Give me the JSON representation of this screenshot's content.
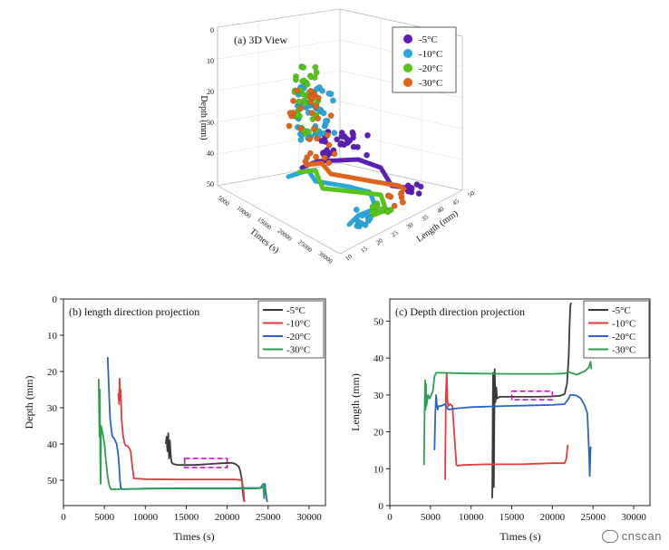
{
  "chart_data": [
    {
      "type": "scatter3d",
      "title": "(a) 3D View",
      "zlabel": "Depth (mm)",
      "xlabel": "Times (s)",
      "ylabel": "Length (mm)",
      "depth_ticks": [
        "0",
        "10",
        "20",
        "30",
        "40",
        "50"
      ],
      "time_ticks": [
        "5000",
        "10000",
        "15000",
        "20000",
        "25000",
        "30000"
      ],
      "length_ticks": [
        "10",
        "15",
        "20",
        "25",
        "30",
        "35",
        "40",
        "45",
        "50"
      ],
      "legend": [
        {
          "name": "-5°C",
          "color": "#5b1fb8"
        },
        {
          "name": "-10°C",
          "color": "#2aa6d8"
        },
        {
          "name": "-20°C",
          "color": "#57c41c"
        },
        {
          "name": "-30°C",
          "color": "#e0641c"
        }
      ],
      "legend_position": "top-right"
    },
    {
      "type": "line",
      "title": "(b) length direction projection",
      "xlabel": "Times (s)",
      "ylabel": "Depth (mm)",
      "xlim": [
        0,
        32000
      ],
      "ylim": [
        0,
        57
      ],
      "y_inverted": true,
      "xticks": [
        0,
        5000,
        10000,
        15000,
        20000,
        25000,
        30000
      ],
      "yticks": [
        0,
        10,
        20,
        30,
        40,
        50
      ],
      "legend_position": "top-right",
      "series": [
        {
          "name": "-5°C",
          "color": "#3a3a3a",
          "x": [
            12500,
            12600,
            12700,
            12800,
            12900,
            13000,
            13100,
            13200,
            13400,
            14000,
            16000,
            18000,
            19500,
            20500,
            21000,
            21400,
            21600,
            21800,
            21900,
            22000,
            22100
          ],
          "y": [
            40,
            38,
            42,
            37,
            44,
            39,
            43,
            45,
            45.5,
            45.8,
            45.8,
            45.5,
            45.3,
            45.2,
            45.5,
            46.2,
            47.5,
            50,
            53,
            55,
            56
          ]
        },
        {
          "name": "-10°C",
          "color": "#e03c3c",
          "x": [
            6700,
            6800,
            6850,
            6900,
            7000,
            7100,
            7300,
            7500,
            7600,
            7800,
            8000,
            8200,
            8400,
            8600,
            10000,
            14000,
            18000,
            21000,
            21800,
            22000,
            22100
          ],
          "y": [
            26,
            29,
            22,
            28,
            25,
            33,
            38,
            40,
            40.5,
            40.5,
            41,
            42,
            46,
            49.5,
            49.7,
            49.8,
            49.8,
            49.8,
            50,
            53,
            56
          ]
        },
        {
          "name": "-20°C",
          "color": "#2b63c8",
          "x": [
            5400,
            5500,
            5600,
            5700,
            5800,
            5900,
            6000,
            6200,
            6500,
            6700,
            6800,
            6900,
            7000,
            7200,
            10000,
            15000,
            20000,
            24000,
            24500,
            24600,
            24700,
            24800,
            24900
          ],
          "y": [
            16,
            22,
            28,
            33,
            35,
            37,
            38,
            38.5,
            40,
            43,
            46,
            50,
            52,
            52.5,
            52.3,
            52.2,
            52.2,
            52.1,
            52,
            51,
            53,
            55,
            56
          ]
        },
        {
          "name": "-30°C",
          "color": "#2e9e52",
          "x": [
            4300,
            4350,
            4400,
            4450,
            4500,
            4550,
            4600,
            4700,
            4800,
            5000,
            5200,
            5400,
            5600,
            5800,
            8000,
            12000,
            16000,
            20000,
            23000,
            24000,
            24400,
            24500,
            24600,
            24700
          ],
          "y": [
            22,
            30,
            38,
            25,
            45,
            51,
            35,
            36,
            37,
            40,
            45,
            49,
            51.5,
            52.5,
            52.4,
            52.3,
            52.3,
            52.3,
            52.3,
            52.2,
            51,
            55,
            52,
            53.5
          ]
        }
      ],
      "annotation": "dashed magenta box near x 14800-20000, depth ~44-46"
    },
    {
      "type": "line",
      "title": "(c) Depth direction projection",
      "xlabel": "Times (s)",
      "ylabel": "Length (mm)",
      "xlim": [
        0,
        32000
      ],
      "ylim": [
        0,
        56
      ],
      "xticks": [
        0,
        5000,
        10000,
        15000,
        20000,
        25000,
        30000
      ],
      "yticks": [
        0,
        10,
        20,
        30,
        40,
        50
      ],
      "legend_position": "top-right",
      "series": [
        {
          "name": "-5°C",
          "color": "#3a3a3a",
          "x": [
            12600,
            12700,
            12800,
            12900,
            13000,
            13100,
            13200,
            13500,
            15000,
            18000,
            20000,
            21000,
            21500,
            21800,
            22000,
            22100,
            22200,
            22300
          ],
          "y": [
            2,
            36,
            5,
            37,
            28,
            32,
            29,
            29.5,
            29.5,
            29.5,
            29.6,
            29.8,
            30.2,
            33,
            40,
            48,
            54,
            55
          ]
        },
        {
          "name": "-10°C",
          "color": "#e03c3c",
          "x": [
            6800,
            6900,
            7000,
            7100,
            7200,
            7400,
            7700,
            8000,
            8200,
            8400,
            9000,
            12000,
            16000,
            20000,
            21500,
            21700,
            21800,
            21900
          ],
          "y": [
            7,
            30,
            36,
            28,
            27,
            27.5,
            27,
            17,
            11,
            10.8,
            11,
            11.2,
            11.2,
            11.5,
            11.5,
            12.5,
            14.5,
            16.5
          ]
        },
        {
          "name": "-20°C",
          "color": "#2b63c8",
          "x": [
            5500,
            5600,
            5700,
            5800,
            5900,
            6000,
            6300,
            6800,
            7200,
            8000,
            10000,
            14000,
            18000,
            20000,
            21500,
            22000,
            22200,
            22500,
            23000,
            23500,
            24000,
            24300,
            24500,
            24600,
            24700
          ],
          "y": [
            15,
            25,
            30,
            27,
            26,
            27,
            27,
            27.5,
            26,
            26.3,
            26.7,
            27,
            27.2,
            27.3,
            27.5,
            29,
            30,
            30,
            29.8,
            29,
            27,
            25,
            15,
            8,
            16
          ]
        },
        {
          "name": "-30°C",
          "color": "#2e9e52",
          "x": [
            4200,
            4300,
            4350,
            4400,
            4450,
            4500,
            4700,
            4900,
            5100,
            5300,
            5500,
            5700,
            6000,
            10000,
            15000,
            20000,
            21500,
            22000,
            23000,
            24000,
            24500,
            24700,
            24800
          ],
          "y": [
            11,
            29,
            34,
            26,
            33,
            27,
            30,
            29,
            30,
            31,
            35,
            36,
            36,
            35.8,
            35.7,
            35.7,
            35.8,
            36.2,
            35.5,
            36.5,
            37.5,
            39,
            37
          ]
        }
      ],
      "annotation": "dashed magenta box near x 15000-20000, length ~29-31"
    }
  ],
  "watermark": {
    "text": "cnscan"
  }
}
